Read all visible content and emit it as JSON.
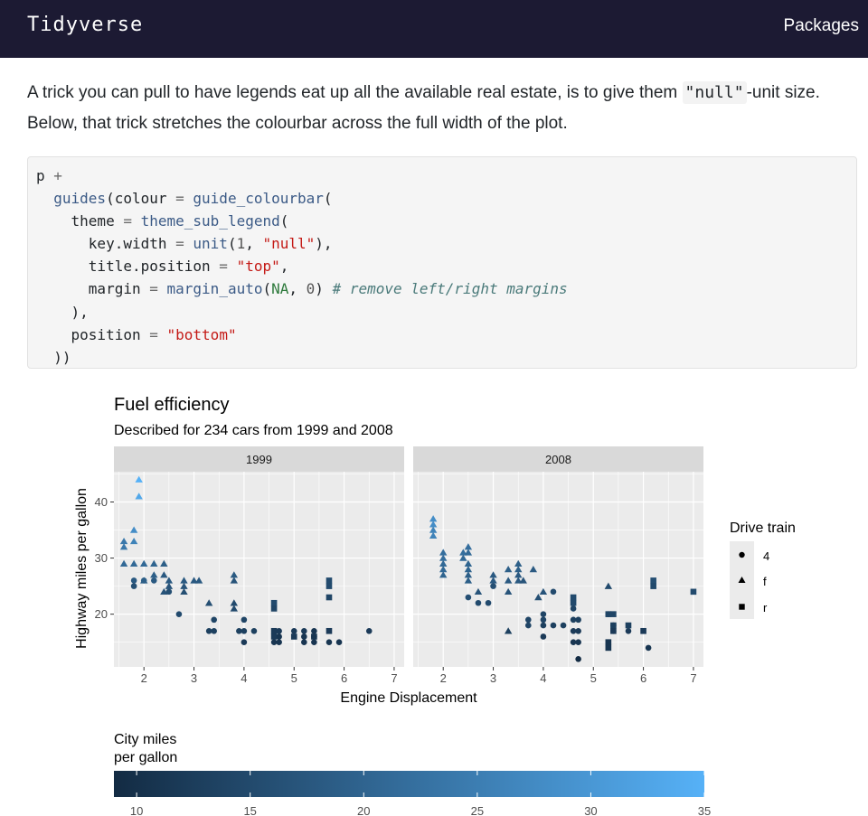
{
  "navbar": {
    "brand": "Tidyverse",
    "link": "Packages"
  },
  "paragraph": {
    "part1": "A trick you can pull to have legends eat up all the available real estate, is to give them ",
    "code": "\"null\"",
    "part2": "-unit size. Below, that trick stretches the colourbar across the full width of the plot."
  },
  "code_lines": [
    [
      {
        "c": "",
        "t": "p "
      },
      {
        "c": "op",
        "t": "+"
      }
    ],
    [
      {
        "c": "",
        "t": "  "
      },
      {
        "c": "fn",
        "t": "guides"
      },
      {
        "c": "",
        "t": "(colour "
      },
      {
        "c": "op",
        "t": "="
      },
      {
        "c": "",
        "t": " "
      },
      {
        "c": "fn",
        "t": "guide_colourbar"
      },
      {
        "c": "",
        "t": "("
      }
    ],
    [
      {
        "c": "",
        "t": "    theme "
      },
      {
        "c": "op",
        "t": "="
      },
      {
        "c": "",
        "t": " "
      },
      {
        "c": "fn",
        "t": "theme_sub_legend"
      },
      {
        "c": "",
        "t": "("
      }
    ],
    [
      {
        "c": "",
        "t": "      key.width "
      },
      {
        "c": "op",
        "t": "="
      },
      {
        "c": "",
        "t": " "
      },
      {
        "c": "fn",
        "t": "unit"
      },
      {
        "c": "",
        "t": "("
      },
      {
        "c": "num",
        "t": "1"
      },
      {
        "c": "",
        "t": ", "
      },
      {
        "c": "str",
        "t": "\"null\""
      },
      {
        "c": "",
        "t": "),"
      }
    ],
    [
      {
        "c": "",
        "t": "      title.position "
      },
      {
        "c": "op",
        "t": "="
      },
      {
        "c": "",
        "t": " "
      },
      {
        "c": "str",
        "t": "\"top\""
      },
      {
        "c": "",
        "t": ","
      }
    ],
    [
      {
        "c": "",
        "t": "      margin "
      },
      {
        "c": "op",
        "t": "="
      },
      {
        "c": "",
        "t": " "
      },
      {
        "c": "fn",
        "t": "margin_auto"
      },
      {
        "c": "",
        "t": "("
      },
      {
        "c": "na",
        "t": "NA"
      },
      {
        "c": "",
        "t": ", "
      },
      {
        "c": "num",
        "t": "0"
      },
      {
        "c": "",
        "t": ") "
      },
      {
        "c": "cmt",
        "t": "# remove left/right margins"
      }
    ],
    [
      {
        "c": "",
        "t": "    ),"
      }
    ],
    [
      {
        "c": "",
        "t": "    position "
      },
      {
        "c": "op",
        "t": "="
      },
      {
        "c": "",
        "t": " "
      },
      {
        "c": "str",
        "t": "\"bottom\""
      }
    ],
    [
      {
        "c": "",
        "t": "  ))"
      }
    ]
  ],
  "chart_data": {
    "type": "scatter",
    "title": "Fuel efficiency",
    "subtitle": "Described for 234 cars from 1999 and 2008",
    "xlabel": "Engine Displacement",
    "ylabel": "Highway miles per gallon",
    "xlim": [
      1.4,
      7.2
    ],
    "ylim": [
      10.6,
      45.4
    ],
    "xticks": [
      2,
      3,
      4,
      5,
      6,
      7
    ],
    "yticks": [
      20,
      30,
      40
    ],
    "facets": [
      "1999",
      "2008"
    ],
    "legend": {
      "title": "Drive train",
      "entries": [
        "4",
        "f",
        "r"
      ],
      "placement": "right"
    },
    "colourbar": {
      "title": "City miles per gallon",
      "ticks": [
        10,
        15,
        20,
        25,
        30,
        35
      ],
      "range": [
        9,
        35
      ],
      "placement": "bottom",
      "low_color": "#132b43",
      "high_color": "#56b1f7"
    },
    "points_1999": [
      {
        "x": 1.6,
        "y": 33,
        "drv": "f",
        "cty": 24
      },
      {
        "x": 1.6,
        "y": 32,
        "drv": "f",
        "cty": 24
      },
      {
        "x": 1.8,
        "y": 35,
        "drv": "f",
        "cty": 28
      },
      {
        "x": 1.8,
        "y": 33,
        "drv": "f",
        "cty": 26
      },
      {
        "x": 1.9,
        "y": 44,
        "drv": "f",
        "cty": 35
      },
      {
        "x": 1.9,
        "y": 41,
        "drv": "f",
        "cty": 33
      },
      {
        "x": 1.6,
        "y": 29,
        "drv": "f",
        "cty": 21
      },
      {
        "x": 1.8,
        "y": 29,
        "drv": "f",
        "cty": 21
      },
      {
        "x": 2.0,
        "y": 29,
        "drv": "f",
        "cty": 21
      },
      {
        "x": 2.2,
        "y": 29,
        "drv": "f",
        "cty": 20
      },
      {
        "x": 2.4,
        "y": 29,
        "drv": "f",
        "cty": 19
      },
      {
        "x": 2.0,
        "y": 26,
        "drv": "f",
        "cty": 19
      },
      {
        "x": 2.2,
        "y": 27,
        "drv": "f",
        "cty": 19
      },
      {
        "x": 2.4,
        "y": 27,
        "drv": "f",
        "cty": 18
      },
      {
        "x": 2.5,
        "y": 26,
        "drv": "f",
        "cty": 18
      },
      {
        "x": 2.5,
        "y": 25,
        "drv": "f",
        "cty": 17
      },
      {
        "x": 2.4,
        "y": 24,
        "drv": "f",
        "cty": 17
      },
      {
        "x": 2.8,
        "y": 26,
        "drv": "f",
        "cty": 18
      },
      {
        "x": 2.8,
        "y": 25,
        "drv": "f",
        "cty": 17
      },
      {
        "x": 2.8,
        "y": 24,
        "drv": "f",
        "cty": 16
      },
      {
        "x": 3.0,
        "y": 26,
        "drv": "f",
        "cty": 18
      },
      {
        "x": 3.1,
        "y": 26,
        "drv": "f",
        "cty": 18
      },
      {
        "x": 3.3,
        "y": 22,
        "drv": "f",
        "cty": 16
      },
      {
        "x": 3.8,
        "y": 27,
        "drv": "f",
        "cty": 18
      },
      {
        "x": 3.8,
        "y": 26,
        "drv": "f",
        "cty": 17
      },
      {
        "x": 3.8,
        "y": 22,
        "drv": "f",
        "cty": 15
      },
      {
        "x": 3.8,
        "y": 21,
        "drv": "f",
        "cty": 15
      },
      {
        "x": 1.8,
        "y": 26,
        "drv": "4",
        "cty": 18
      },
      {
        "x": 1.8,
        "y": 25,
        "drv": "4",
        "cty": 16
      },
      {
        "x": 2.0,
        "y": 26,
        "drv": "4",
        "cty": 19
      },
      {
        "x": 2.2,
        "y": 26,
        "drv": "4",
        "cty": 18
      },
      {
        "x": 2.5,
        "y": 24,
        "drv": "4",
        "cty": 16
      },
      {
        "x": 2.7,
        "y": 20,
        "drv": "4",
        "cty": 15
      },
      {
        "x": 3.4,
        "y": 19,
        "drv": "4",
        "cty": 14
      },
      {
        "x": 3.3,
        "y": 17,
        "drv": "4",
        "cty": 13
      },
      {
        "x": 3.4,
        "y": 17,
        "drv": "4",
        "cty": 13
      },
      {
        "x": 4.0,
        "y": 19,
        "drv": "4",
        "cty": 14
      },
      {
        "x": 4.0,
        "y": 17,
        "drv": "4",
        "cty": 13
      },
      {
        "x": 3.9,
        "y": 17,
        "drv": "4",
        "cty": 13
      },
      {
        "x": 4.2,
        "y": 17,
        "drv": "4",
        "cty": 13
      },
      {
        "x": 4.0,
        "y": 15,
        "drv": "4",
        "cty": 12
      },
      {
        "x": 4.7,
        "y": 17,
        "drv": "4",
        "cty": 12
      },
      {
        "x": 4.7,
        "y": 16,
        "drv": "4",
        "cty": 11
      },
      {
        "x": 4.6,
        "y": 15,
        "drv": "4",
        "cty": 11
      },
      {
        "x": 4.7,
        "y": 15,
        "drv": "4",
        "cty": 11
      },
      {
        "x": 5.0,
        "y": 17,
        "drv": "4",
        "cty": 12
      },
      {
        "x": 5.2,
        "y": 17,
        "drv": "4",
        "cty": 12
      },
      {
        "x": 5.2,
        "y": 16,
        "drv": "4",
        "cty": 11
      },
      {
        "x": 5.4,
        "y": 17,
        "drv": "4",
        "cty": 11
      },
      {
        "x": 5.4,
        "y": 16,
        "drv": "4",
        "cty": 11
      },
      {
        "x": 5.4,
        "y": 15,
        "drv": "4",
        "cty": 11
      },
      {
        "x": 5.7,
        "y": 15,
        "drv": "4",
        "cty": 11
      },
      {
        "x": 5.9,
        "y": 15,
        "drv": "4",
        "cty": 11
      },
      {
        "x": 6.5,
        "y": 17,
        "drv": "4",
        "cty": 12
      },
      {
        "x": 5.2,
        "y": 15,
        "drv": "4",
        "cty": 11
      },
      {
        "x": 4.6,
        "y": 22,
        "drv": "r",
        "cty": 15
      },
      {
        "x": 4.6,
        "y": 21,
        "drv": "r",
        "cty": 14
      },
      {
        "x": 4.6,
        "y": 16,
        "drv": "r",
        "cty": 12
      },
      {
        "x": 4.6,
        "y": 17,
        "drv": "r",
        "cty": 12
      },
      {
        "x": 5.0,
        "y": 16,
        "drv": "r",
        "cty": 12
      },
      {
        "x": 5.4,
        "y": 16,
        "drv": "r",
        "cty": 11
      },
      {
        "x": 5.7,
        "y": 17,
        "drv": "r",
        "cty": 12
      },
      {
        "x": 5.7,
        "y": 26,
        "drv": "r",
        "cty": 15
      },
      {
        "x": 5.7,
        "y": 23,
        "drv": "r",
        "cty": 14
      },
      {
        "x": 5.7,
        "y": 25,
        "drv": "r",
        "cty": 15
      }
    ],
    "points_2008": [
      {
        "x": 1.8,
        "y": 37,
        "drv": "f",
        "cty": 28
      },
      {
        "x": 1.8,
        "y": 36,
        "drv": "f",
        "cty": 28
      },
      {
        "x": 1.8,
        "y": 35,
        "drv": "f",
        "cty": 26
      },
      {
        "x": 1.8,
        "y": 34,
        "drv": "f",
        "cty": 26
      },
      {
        "x": 2.0,
        "y": 31,
        "drv": "f",
        "cty": 22
      },
      {
        "x": 2.0,
        "y": 30,
        "drv": "f",
        "cty": 22
      },
      {
        "x": 2.0,
        "y": 29,
        "drv": "f",
        "cty": 21
      },
      {
        "x": 2.0,
        "y": 28,
        "drv": "f",
        "cty": 21
      },
      {
        "x": 2.0,
        "y": 27,
        "drv": "f",
        "cty": 20
      },
      {
        "x": 2.4,
        "y": 31,
        "drv": "f",
        "cty": 22
      },
      {
        "x": 2.4,
        "y": 30,
        "drv": "f",
        "cty": 21
      },
      {
        "x": 2.5,
        "y": 32,
        "drv": "f",
        "cty": 22
      },
      {
        "x": 2.5,
        "y": 31,
        "drv": "f",
        "cty": 21
      },
      {
        "x": 2.5,
        "y": 29,
        "drv": "f",
        "cty": 20
      },
      {
        "x": 2.5,
        "y": 28,
        "drv": "f",
        "cty": 20
      },
      {
        "x": 2.5,
        "y": 27,
        "drv": "f",
        "cty": 19
      },
      {
        "x": 2.5,
        "y": 26,
        "drv": "f",
        "cty": 19
      },
      {
        "x": 2.7,
        "y": 24,
        "drv": "f",
        "cty": 17
      },
      {
        "x": 3.0,
        "y": 27,
        "drv": "f",
        "cty": 18
      },
      {
        "x": 3.0,
        "y": 26,
        "drv": "f",
        "cty": 18
      },
      {
        "x": 3.3,
        "y": 28,
        "drv": "f",
        "cty": 19
      },
      {
        "x": 3.3,
        "y": 26,
        "drv": "f",
        "cty": 18
      },
      {
        "x": 3.3,
        "y": 24,
        "drv": "f",
        "cty": 17
      },
      {
        "x": 3.5,
        "y": 29,
        "drv": "f",
        "cty": 19
      },
      {
        "x": 3.5,
        "y": 28,
        "drv": "f",
        "cty": 19
      },
      {
        "x": 3.5,
        "y": 27,
        "drv": "f",
        "cty": 18
      },
      {
        "x": 3.5,
        "y": 26,
        "drv": "f",
        "cty": 18
      },
      {
        "x": 3.6,
        "y": 26,
        "drv": "f",
        "cty": 17
      },
      {
        "x": 3.8,
        "y": 28,
        "drv": "f",
        "cty": 18
      },
      {
        "x": 3.9,
        "y": 23,
        "drv": "f",
        "cty": 16
      },
      {
        "x": 4.0,
        "y": 24,
        "drv": "f",
        "cty": 17
      },
      {
        "x": 3.3,
        "y": 17,
        "drv": "f",
        "cty": 13
      },
      {
        "x": 2.5,
        "y": 23,
        "drv": "4",
        "cty": 16
      },
      {
        "x": 2.7,
        "y": 22,
        "drv": "4",
        "cty": 15
      },
      {
        "x": 3.0,
        "y": 25,
        "drv": "4",
        "cty": 16
      },
      {
        "x": 2.9,
        "y": 22,
        "drv": "4",
        "cty": 15
      },
      {
        "x": 3.7,
        "y": 19,
        "drv": "4",
        "cty": 14
      },
      {
        "x": 3.7,
        "y": 18,
        "drv": "4",
        "cty": 14
      },
      {
        "x": 4.0,
        "y": 20,
        "drv": "4",
        "cty": 14
      },
      {
        "x": 4.0,
        "y": 19,
        "drv": "4",
        "cty": 14
      },
      {
        "x": 4.2,
        "y": 18,
        "drv": "4",
        "cty": 13
      },
      {
        "x": 4.4,
        "y": 18,
        "drv": "4",
        "cty": 13
      },
      {
        "x": 4.0,
        "y": 18,
        "drv": "4",
        "cty": 13
      },
      {
        "x": 4.6,
        "y": 19,
        "drv": "4",
        "cty": 13
      },
      {
        "x": 4.6,
        "y": 17,
        "drv": "4",
        "cty": 12
      },
      {
        "x": 4.7,
        "y": 19,
        "drv": "4",
        "cty": 13
      },
      {
        "x": 4.7,
        "y": 17,
        "drv": "4",
        "cty": 12
      },
      {
        "x": 4.7,
        "y": 15,
        "drv": "4",
        "cty": 11
      },
      {
        "x": 4.7,
        "y": 12,
        "drv": "4",
        "cty": 9
      },
      {
        "x": 4.6,
        "y": 15,
        "drv": "4",
        "cty": 11
      },
      {
        "x": 5.3,
        "y": 20,
        "drv": "4",
        "cty": 14
      },
      {
        "x": 5.7,
        "y": 17,
        "drv": "4",
        "cty": 12
      },
      {
        "x": 5.4,
        "y": 17,
        "drv": "4",
        "cty": 12
      },
      {
        "x": 6.1,
        "y": 14,
        "drv": "4",
        "cty": 11
      },
      {
        "x": 4.6,
        "y": 21,
        "drv": "4",
        "cty": 14
      },
      {
        "x": 5.4,
        "y": 18,
        "drv": "4",
        "cty": 12
      },
      {
        "x": 4.0,
        "y": 16,
        "drv": "4",
        "cty": 12
      },
      {
        "x": 4.2,
        "y": 24,
        "drv": "4",
        "cty": 15
      },
      {
        "x": 4.6,
        "y": 22,
        "drv": "r",
        "cty": 15
      },
      {
        "x": 4.6,
        "y": 23,
        "drv": "r",
        "cty": 15
      },
      {
        "x": 5.3,
        "y": 20,
        "drv": "r",
        "cty": 14
      },
      {
        "x": 5.4,
        "y": 20,
        "drv": "r",
        "cty": 14
      },
      {
        "x": 5.4,
        "y": 18,
        "drv": "r",
        "cty": 13
      },
      {
        "x": 5.4,
        "y": 17,
        "drv": "r",
        "cty": 12
      },
      {
        "x": 5.3,
        "y": 15,
        "drv": "r",
        "cty": 11
      },
      {
        "x": 5.3,
        "y": 14,
        "drv": "r",
        "cty": 11
      },
      {
        "x": 5.7,
        "y": 18,
        "drv": "r",
        "cty": 13
      },
      {
        "x": 6.0,
        "y": 17,
        "drv": "r",
        "cty": 12
      },
      {
        "x": 6.2,
        "y": 26,
        "drv": "r",
        "cty": 16
      },
      {
        "x": 6.2,
        "y": 25,
        "drv": "r",
        "cty": 15
      },
      {
        "x": 7.0,
        "y": 24,
        "drv": "r",
        "cty": 15
      },
      {
        "x": 5.3,
        "y": 25,
        "drv": "f",
        "cty": 15
      }
    ]
  }
}
